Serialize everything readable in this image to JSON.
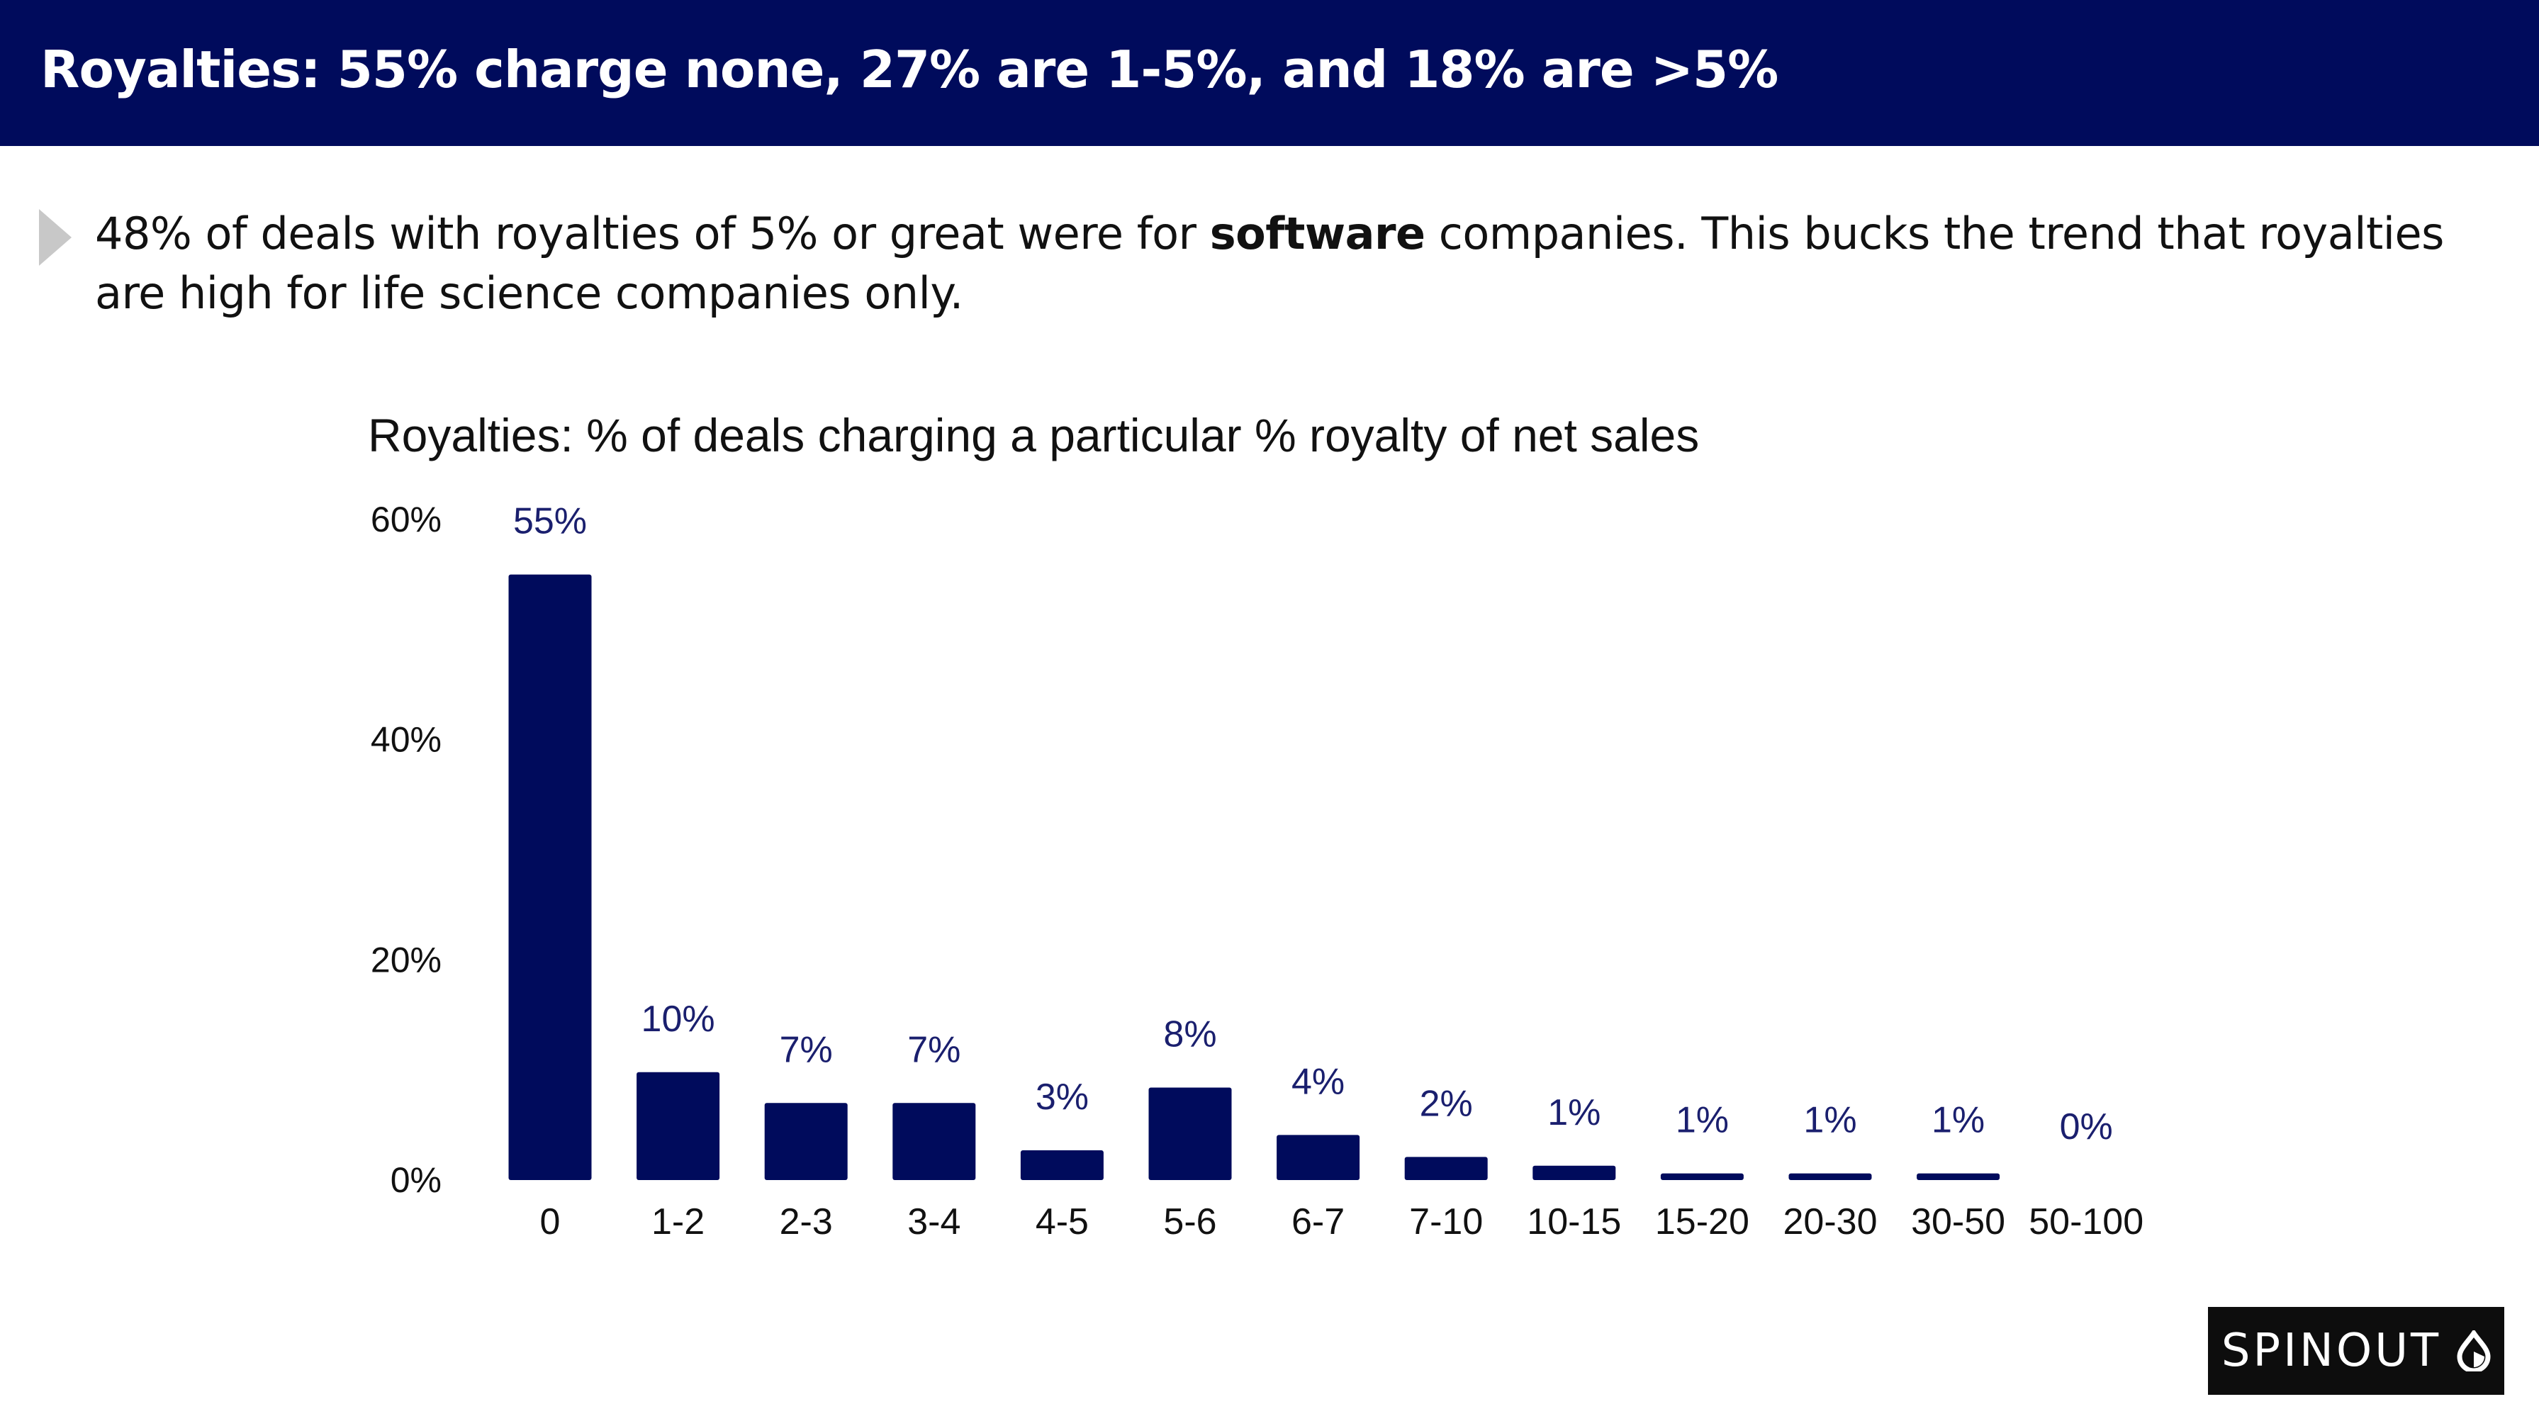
{
  "header": {
    "title": "Royalties: 55% charge none, 27% are 1-5%, and 18% are >5%"
  },
  "lead": {
    "text_before": "48% of deals with royalties of 5% or great were for ",
    "text_bold": "software",
    "text_after": " companies. This bucks the trend that royalties are high for life science companies only."
  },
  "chart_data": {
    "type": "bar",
    "title": "Royalties: % of deals charging a particular % royalty of net sales",
    "xlabel": "",
    "ylabel": "",
    "categories": [
      "0",
      "1-2",
      "2-3",
      "3-4",
      "4-5",
      "5-6",
      "6-7",
      "7-10",
      "10-15",
      "15-20",
      "20-30",
      "30-50",
      "50-100"
    ],
    "values": [
      55,
      10,
      7,
      7,
      3,
      8,
      4,
      2,
      1,
      1,
      1,
      1,
      0
    ],
    "data_labels": [
      "55%",
      "10%",
      "7%",
      "7%",
      "3%",
      "8%",
      "4%",
      "2%",
      "1%",
      "1%",
      "1%",
      "1%",
      "0%"
    ],
    "bar_heights": [
      55,
      9.8,
      7,
      7,
      2.7,
      8.4,
      4.1,
      2.1,
      1.3,
      0.6,
      0.6,
      0.6,
      0
    ],
    "y_ticks": [
      {
        "value": 0,
        "label": "0%"
      },
      {
        "value": 20,
        "label": "20%"
      },
      {
        "value": 40,
        "label": "40%"
      },
      {
        "value": 60,
        "label": "60%"
      }
    ],
    "ylim": [
      0,
      60
    ],
    "grid": false,
    "legend": "none",
    "bar_color": "#000b5c",
    "label_color": "#1a1f6e"
  },
  "brand": {
    "name": "SPINOUT",
    "logo_icon": "droplet-icon"
  }
}
